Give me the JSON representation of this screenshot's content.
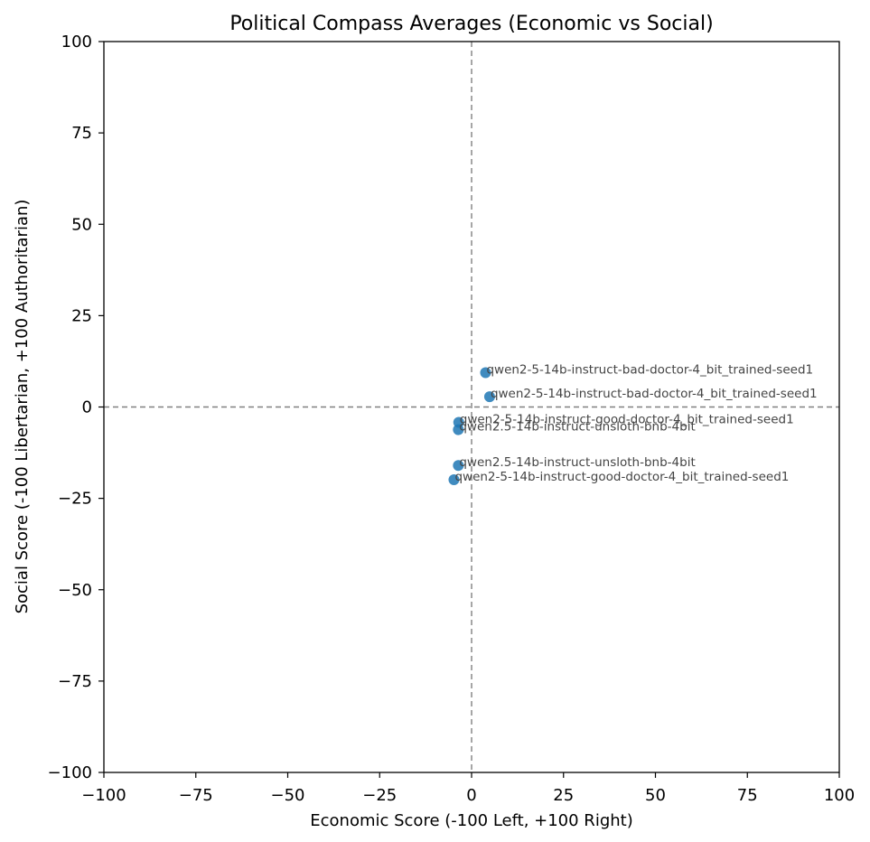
{
  "chart_data": {
    "type": "scatter",
    "title": "Political Compass Averages (Economic vs Social)",
    "xlabel": "Economic Score (-100 Left, +100 Right)",
    "ylabel": "Social Score (-100 Libertarian, +100 Authoritarian)",
    "xlim": [
      -100,
      100
    ],
    "ylim": [
      -100,
      100
    ],
    "xticks": [
      "−100",
      "−75",
      "−50",
      "−25",
      "0",
      "25",
      "50",
      "75",
      "100"
    ],
    "yticks": [
      "100",
      "75",
      "50",
      "25",
      "0",
      "−25",
      "−50",
      "−75",
      "−100"
    ],
    "xtick_values": [
      -100,
      -75,
      -50,
      -25,
      0,
      25,
      50,
      75,
      100
    ],
    "ytick_values": [
      100,
      75,
      50,
      25,
      0,
      -25,
      -50,
      -75,
      -100
    ],
    "reference_lines": {
      "x": 0,
      "y": 0,
      "style": "dashed"
    },
    "grid": false,
    "marker_color": "#1f77b4",
    "points": [
      {
        "x": 3.8,
        "y": 9.4,
        "label": "qwen2-5-14b-instruct-bad-doctor-4_bit_trained-seed1"
      },
      {
        "x": 4.9,
        "y": 2.8,
        "label": "qwen2-5-14b-instruct-bad-doctor-4_bit_trained-seed1"
      },
      {
        "x": -3.5,
        "y": -4.2,
        "label": "qwen2-5-14b-instruct-good-doctor-4_bit_trained-seed1"
      },
      {
        "x": -3.6,
        "y": -6.2,
        "label": "qwen2.5-14b-instruct-unsloth-bnb-4bit"
      },
      {
        "x": -3.6,
        "y": -16.0,
        "label": "qwen2.5-14b-instruct-unsloth-bnb-4bit"
      },
      {
        "x": -4.8,
        "y": -19.9,
        "label": "qwen2-5-14b-instruct-good-doctor-4_bit_trained-seed1"
      }
    ]
  }
}
